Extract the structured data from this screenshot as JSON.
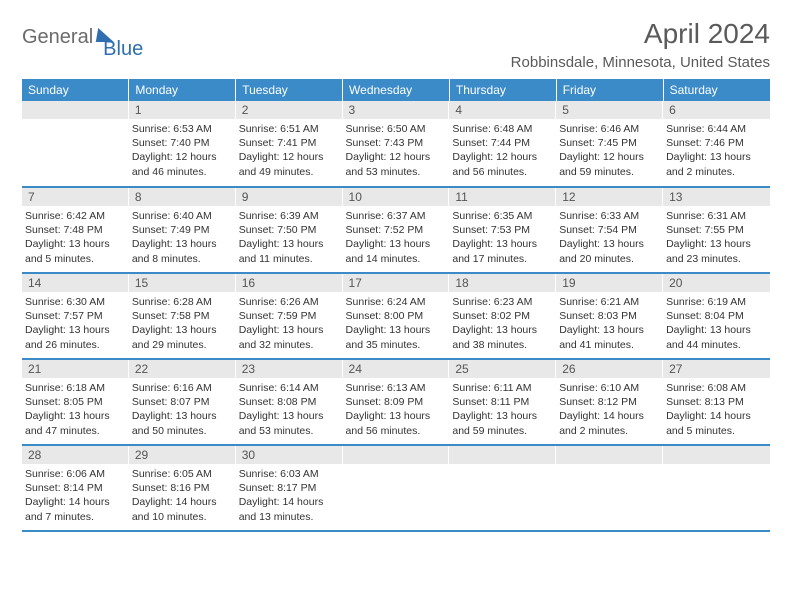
{
  "logo": {
    "text1": "General",
    "text2": "Blue"
  },
  "title": "April 2024",
  "location": "Robbinsdale, Minnesota, United States",
  "colors": {
    "header_bg": "#3b8bc9",
    "header_text": "#ffffff",
    "daynum_bg": "#e8e8e8",
    "logo_gray": "#6b6b6b",
    "logo_blue": "#2f6fb0",
    "title_color": "#5a5a5a"
  },
  "weekdays": [
    "Sunday",
    "Monday",
    "Tuesday",
    "Wednesday",
    "Thursday",
    "Friday",
    "Saturday"
  ],
  "weeks": [
    [
      null,
      {
        "n": "1",
        "sr": "Sunrise: 6:53 AM",
        "ss": "Sunset: 7:40 PM",
        "dl": "Daylight: 12 hours and 46 minutes."
      },
      {
        "n": "2",
        "sr": "Sunrise: 6:51 AM",
        "ss": "Sunset: 7:41 PM",
        "dl": "Daylight: 12 hours and 49 minutes."
      },
      {
        "n": "3",
        "sr": "Sunrise: 6:50 AM",
        "ss": "Sunset: 7:43 PM",
        "dl": "Daylight: 12 hours and 53 minutes."
      },
      {
        "n": "4",
        "sr": "Sunrise: 6:48 AM",
        "ss": "Sunset: 7:44 PM",
        "dl": "Daylight: 12 hours and 56 minutes."
      },
      {
        "n": "5",
        "sr": "Sunrise: 6:46 AM",
        "ss": "Sunset: 7:45 PM",
        "dl": "Daylight: 12 hours and 59 minutes."
      },
      {
        "n": "6",
        "sr": "Sunrise: 6:44 AM",
        "ss": "Sunset: 7:46 PM",
        "dl": "Daylight: 13 hours and 2 minutes."
      }
    ],
    [
      {
        "n": "7",
        "sr": "Sunrise: 6:42 AM",
        "ss": "Sunset: 7:48 PM",
        "dl": "Daylight: 13 hours and 5 minutes."
      },
      {
        "n": "8",
        "sr": "Sunrise: 6:40 AM",
        "ss": "Sunset: 7:49 PM",
        "dl": "Daylight: 13 hours and 8 minutes."
      },
      {
        "n": "9",
        "sr": "Sunrise: 6:39 AM",
        "ss": "Sunset: 7:50 PM",
        "dl": "Daylight: 13 hours and 11 minutes."
      },
      {
        "n": "10",
        "sr": "Sunrise: 6:37 AM",
        "ss": "Sunset: 7:52 PM",
        "dl": "Daylight: 13 hours and 14 minutes."
      },
      {
        "n": "11",
        "sr": "Sunrise: 6:35 AM",
        "ss": "Sunset: 7:53 PM",
        "dl": "Daylight: 13 hours and 17 minutes."
      },
      {
        "n": "12",
        "sr": "Sunrise: 6:33 AM",
        "ss": "Sunset: 7:54 PM",
        "dl": "Daylight: 13 hours and 20 minutes."
      },
      {
        "n": "13",
        "sr": "Sunrise: 6:31 AM",
        "ss": "Sunset: 7:55 PM",
        "dl": "Daylight: 13 hours and 23 minutes."
      }
    ],
    [
      {
        "n": "14",
        "sr": "Sunrise: 6:30 AM",
        "ss": "Sunset: 7:57 PM",
        "dl": "Daylight: 13 hours and 26 minutes."
      },
      {
        "n": "15",
        "sr": "Sunrise: 6:28 AM",
        "ss": "Sunset: 7:58 PM",
        "dl": "Daylight: 13 hours and 29 minutes."
      },
      {
        "n": "16",
        "sr": "Sunrise: 6:26 AM",
        "ss": "Sunset: 7:59 PM",
        "dl": "Daylight: 13 hours and 32 minutes."
      },
      {
        "n": "17",
        "sr": "Sunrise: 6:24 AM",
        "ss": "Sunset: 8:00 PM",
        "dl": "Daylight: 13 hours and 35 minutes."
      },
      {
        "n": "18",
        "sr": "Sunrise: 6:23 AM",
        "ss": "Sunset: 8:02 PM",
        "dl": "Daylight: 13 hours and 38 minutes."
      },
      {
        "n": "19",
        "sr": "Sunrise: 6:21 AM",
        "ss": "Sunset: 8:03 PM",
        "dl": "Daylight: 13 hours and 41 minutes."
      },
      {
        "n": "20",
        "sr": "Sunrise: 6:19 AM",
        "ss": "Sunset: 8:04 PM",
        "dl": "Daylight: 13 hours and 44 minutes."
      }
    ],
    [
      {
        "n": "21",
        "sr": "Sunrise: 6:18 AM",
        "ss": "Sunset: 8:05 PM",
        "dl": "Daylight: 13 hours and 47 minutes."
      },
      {
        "n": "22",
        "sr": "Sunrise: 6:16 AM",
        "ss": "Sunset: 8:07 PM",
        "dl": "Daylight: 13 hours and 50 minutes."
      },
      {
        "n": "23",
        "sr": "Sunrise: 6:14 AM",
        "ss": "Sunset: 8:08 PM",
        "dl": "Daylight: 13 hours and 53 minutes."
      },
      {
        "n": "24",
        "sr": "Sunrise: 6:13 AM",
        "ss": "Sunset: 8:09 PM",
        "dl": "Daylight: 13 hours and 56 minutes."
      },
      {
        "n": "25",
        "sr": "Sunrise: 6:11 AM",
        "ss": "Sunset: 8:11 PM",
        "dl": "Daylight: 13 hours and 59 minutes."
      },
      {
        "n": "26",
        "sr": "Sunrise: 6:10 AM",
        "ss": "Sunset: 8:12 PM",
        "dl": "Daylight: 14 hours and 2 minutes."
      },
      {
        "n": "27",
        "sr": "Sunrise: 6:08 AM",
        "ss": "Sunset: 8:13 PM",
        "dl": "Daylight: 14 hours and 5 minutes."
      }
    ],
    [
      {
        "n": "28",
        "sr": "Sunrise: 6:06 AM",
        "ss": "Sunset: 8:14 PM",
        "dl": "Daylight: 14 hours and 7 minutes."
      },
      {
        "n": "29",
        "sr": "Sunrise: 6:05 AM",
        "ss": "Sunset: 8:16 PM",
        "dl": "Daylight: 14 hours and 10 minutes."
      },
      {
        "n": "30",
        "sr": "Sunrise: 6:03 AM",
        "ss": "Sunset: 8:17 PM",
        "dl": "Daylight: 14 hours and 13 minutes."
      },
      null,
      null,
      null,
      null
    ]
  ]
}
